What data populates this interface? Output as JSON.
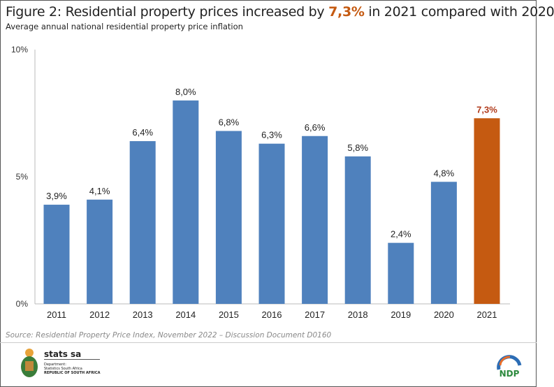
{
  "title": {
    "prefix": "Figure 2: Residential property prices increased by ",
    "highlight": "7,3%",
    "suffix": " in 2021 compared with 2020"
  },
  "subtitle": "Average annual national residential property price inflation",
  "source": "Source: Residential Property Price Index, November 2022 – Discussion Document D0160",
  "logos": {
    "statssa_name": "stats sa",
    "statssa_line1": "Department:",
    "statssa_line2": "Statistics South Africa",
    "statssa_line3": "REPUBLIC OF SOUTH AFRICA",
    "ndp": "NDP"
  },
  "colors": {
    "bar": "#4f81bd",
    "highlight": "#c55a11"
  },
  "chart_data": {
    "type": "bar",
    "categories": [
      "2011",
      "2012",
      "2013",
      "2014",
      "2015",
      "2016",
      "2017",
      "2018",
      "2019",
      "2020",
      "2021"
    ],
    "values": [
      3.9,
      4.1,
      6.4,
      8.0,
      6.8,
      6.3,
      6.6,
      5.8,
      2.4,
      4.8,
      7.3
    ],
    "labels": [
      "3,9%",
      "4,1%",
      "6,4%",
      "8,0%",
      "6,8%",
      "6,3%",
      "6,6%",
      "5,8%",
      "2,4%",
      "4,8%",
      "7,3%"
    ],
    "highlight_index": 10,
    "ylim": [
      0,
      10
    ],
    "yticks": [
      0,
      5,
      10
    ],
    "ytick_labels": [
      "0%",
      "5%",
      "10%"
    ],
    "grid": false,
    "xlabel": "",
    "ylabel": ""
  }
}
